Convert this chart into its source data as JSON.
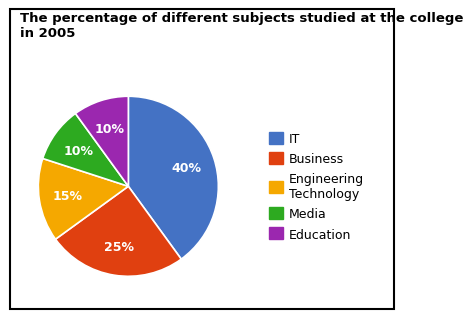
{
  "title": "The percentage of different subjects studied at the college\nin 2005",
  "sizes": [
    40,
    25,
    15,
    10,
    10
  ],
  "colors": [
    "#4472C4",
    "#E04010",
    "#F5A800",
    "#2DAA20",
    "#9B27AF"
  ],
  "legend_labels": [
    "IT",
    "Business",
    "Engineering\nTechnology",
    "Media",
    "Education"
  ],
  "startangle": 90,
  "title_fontsize": 9.5,
  "legend_fontsize": 9,
  "autopct_fontsize": 9,
  "background_color": "#FFFFFF",
  "border_color": "#000000"
}
